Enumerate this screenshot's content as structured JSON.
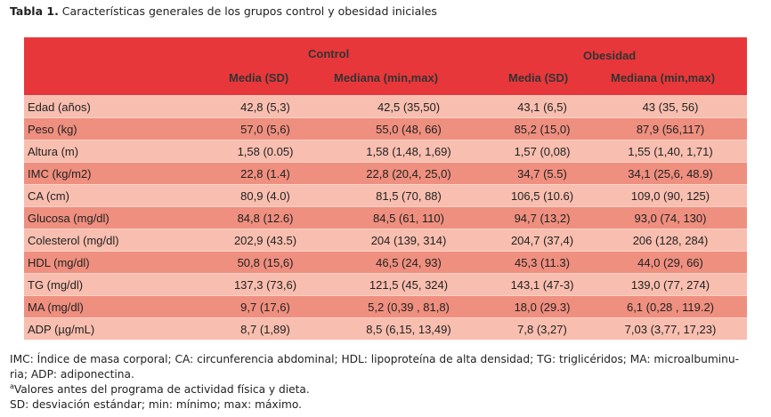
{
  "caption": {
    "label": "Tabla 1.",
    "text": " Características generales de los grupos control y obesidad iniciales"
  },
  "header": {
    "group_control": "Control",
    "group_obesidad": "Obesidad",
    "col_media_sd": "Media (SD)",
    "col_mediana": "Mediana (min,max)"
  },
  "rows": [
    [
      "Edad (años)",
      "42,8 (5,3)",
      "42,5 (35,50)",
      "43,1 (6,5)",
      "43 (35, 56)"
    ],
    [
      "Peso (kg)",
      "57,0 (5,6)",
      "55,0 (48, 66)",
      "85,2 (15,0)",
      "87,9 (56,117)"
    ],
    [
      "Altura (m)",
      "1,58 (0.05)",
      "1,58 (1,48, 1,69)",
      "1,57 (0,08)",
      "1,55 (1,40, 1,71)"
    ],
    [
      "IMC (kg/m2)",
      "22,8 (1.4)",
      "22,8 (20,4, 25,0)",
      "34,7 (5.5)",
      "34,1 (25,6, 48.9)"
    ],
    [
      "CA (cm)",
      "80,9 (4.0)",
      "81,5 (70, 88)",
      "106,5 (10.6)",
      "109,0 (90, 125)"
    ],
    [
      "Glucosa (mg/dl)",
      "84,8 (12.6)",
      "84,5 (61, 110)",
      "94,7 (13,2)",
      "93,0 (74, 130)"
    ],
    [
      "Colesterol (mg/dl)",
      "202,9 (43.5)",
      "204 (139, 314)",
      "204,7 (37,4)",
      "206 (128, 284)"
    ],
    [
      "HDL (mg/dl)",
      "50,8 (15,6)",
      "46,5 (24, 93)",
      "45,3 (11.3)",
      "44,0 (29, 66)"
    ],
    [
      "TG (mg/dl)",
      "137,3 (73,6)",
      "121,5 (45, 324)",
      "143,1 (47-3)",
      "139,0 (77, 274)"
    ],
    [
      "MA (mg/dl)",
      "9,7 (17,6)",
      "5,2 (0,39 , 81,8)",
      "18,0 (29.3)",
      "6,1 (0,28 , 119.2)"
    ],
    [
      "ADP (µg/mL)",
      "8,7 (1,89)",
      "8,5 (6,15, 13,49)",
      "7,8 (3,27)",
      "7,03 (3,77, 17,23)"
    ]
  ],
  "notes": {
    "abbrev_line1": "IMC: Índice de masa corporal; CA: circunferencia abdominal; HDL: lipoproteína de alta densidad; TG: triglicéridos; MA: microalbuminu-",
    "abbrev_line2": "ria; ADP: adiponectina.",
    "footnote_mark": "a",
    "footnote_text": "Valores antes del programa de actividad física y dieta.",
    "sd_line": "SD: desviación estándar; min: mínimo; max: máximo."
  }
}
